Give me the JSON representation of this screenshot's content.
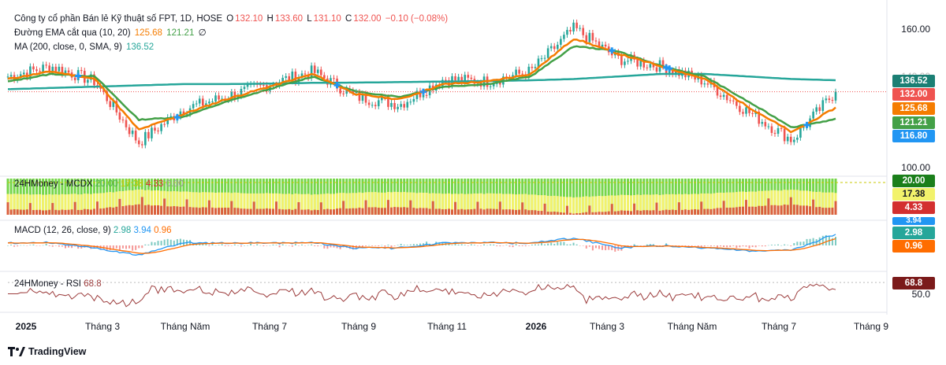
{
  "header": {
    "symbol_name": "Công ty cổ phần Bán lẻ Kỹ thuật số FPT, 1D, HOSE",
    "open_label": "O",
    "open": "132.10",
    "high_label": "H",
    "high": "133.60",
    "low_label": "L",
    "low": "131.10",
    "close_label": "C",
    "close": "132.00",
    "change": "−0.10 (−0.08%)"
  },
  "indicators": {
    "ema_name": "Đường EMA cắt qua (10, 20)",
    "ema10": "125.68",
    "ema20": "121.21",
    "ema_extra": "∅",
    "ma_name": "MA (200, close, 0, SMA, 9)",
    "ma200": "136.52",
    "mcdx_name": "24HMoney - MCDX",
    "mcdx_green": "20.00",
    "mcdx_yellow": "17.38",
    "mcdx_red": "4.33",
    "mcdx_gray": "0.00",
    "macd_name": "MACD (12, 26, close, 9)",
    "macd_hist": "2.98",
    "macd_line": "3.94",
    "macd_signal": "0.96",
    "rsi_name": "24HMoney - RSI",
    "rsi_value": "68.8"
  },
  "price_axis": {
    "top": "160.00",
    "bottom": "100.00",
    "partial": "140.00"
  },
  "rsi_axis": {
    "mid": "50.0"
  },
  "price_tags": {
    "ma200": "136.52",
    "last": "132.00",
    "ema10": "125.68",
    "ema20": "121.21",
    "cross_level": "116.80"
  },
  "mcdx_tags": {
    "green": "20.00",
    "yellow": "17.38",
    "red": "4.33"
  },
  "macd_tags": {
    "partial": "3.94",
    "hist": "2.98",
    "signal": "0.96"
  },
  "rsi_tags": {
    "value": "68.8"
  },
  "x_axis": [
    "2025",
    "Tháng 3",
    "Tháng Năm",
    "Tháng 7",
    "Tháng 9",
    "Tháng 11",
    "2026",
    "Tháng 3",
    "Tháng Năm",
    "Tháng 7",
    "Tháng 9"
  ],
  "brand": "TradingView",
  "colors": {
    "up": "#26a69a",
    "down": "#ef5350",
    "ema10": "#f57c00",
    "ema20": "#43a047",
    "ma200": "#26a69a",
    "cross": "#2196f3",
    "mcdx_green": "#76d64a",
    "mcdx_yellow": "#f2f26b",
    "mcdx_red": "#d32f2f",
    "macd": "#2196f3",
    "signal": "#ff6d00",
    "rsi": "#9c3c3c"
  },
  "chart_data": {
    "type": "line",
    "title": "Công ty cổ phần Bán lẻ Kỹ thuật số FPT, 1D, HOSE",
    "x": [
      "2025-01",
      "2025-02",
      "2025-03",
      "2025-04",
      "2025-05",
      "2025-06",
      "2025-07",
      "2025-08",
      "2025-09",
      "2025-10",
      "2025-11",
      "2025-12",
      "2026-01",
      "2026-02",
      "2026-03",
      "2026-04",
      "2026-05",
      "2026-06",
      "2026-07",
      "2026-08"
    ],
    "series": [
      {
        "name": "Close",
        "values": [
          138,
          142,
          136,
          112,
          125,
          130,
          135,
          140,
          130,
          127,
          137,
          136,
          140,
          157,
          145,
          142,
          136,
          124,
          113,
          132
        ]
      },
      {
        "name": "EMA 10",
        "values": [
          137,
          140,
          137,
          117,
          123,
          129,
          134,
          139,
          131,
          129,
          135,
          136,
          139,
          153,
          147,
          142,
          137,
          126,
          116,
          125.68
        ]
      },
      {
        "name": "EMA 20",
        "values": [
          136,
          139,
          138,
          121,
          122,
          128,
          133,
          138,
          132,
          130,
          134,
          135,
          138,
          150,
          148,
          142,
          138,
          128,
          118,
          121.21
        ]
      },
      {
        "name": "MA 200",
        "values": [
          133,
          133.5,
          134,
          134.5,
          135,
          135,
          135.2,
          135.5,
          135.6,
          135.8,
          136,
          136.2,
          136.5,
          137,
          138,
          139,
          139,
          138,
          137,
          136.52
        ]
      }
    ],
    "ylim": [
      100,
      165
    ],
    "y_ticks": [
      100,
      160
    ]
  }
}
